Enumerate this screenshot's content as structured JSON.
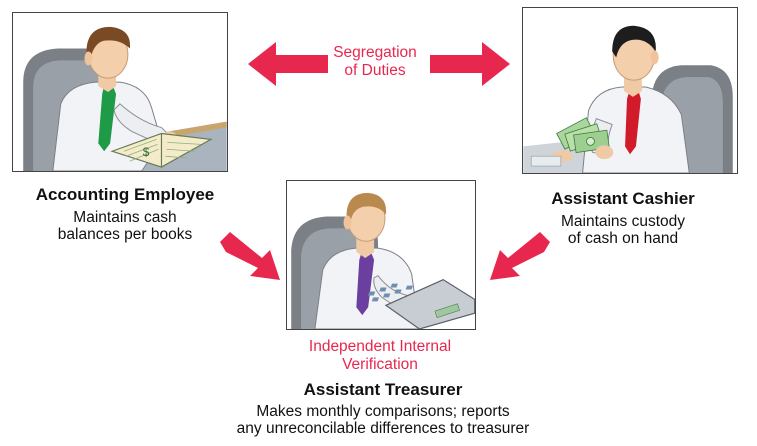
{
  "center_label": {
    "line1": "Segregation",
    "line2": "of Duties"
  },
  "accounting_employee": {
    "title": "Accounting Employee",
    "line1": "Maintains cash",
    "line2": "balances per books",
    "book_symbol": "$"
  },
  "assistant_cashier": {
    "title": "Assistant Cashier",
    "line1": "Maintains custody",
    "line2": "of cash on hand"
  },
  "verification_label": {
    "line1": "Independent Internal",
    "line2": "Verification"
  },
  "assistant_treasurer": {
    "title": "Assistant Treasurer",
    "line1": "Makes monthly comparisons; reports",
    "line2": "any unreconcilable differences to treasurer"
  },
  "colors": {
    "accent_red": "#e8274f",
    "tie_green": "#1f9a47",
    "tie_red": "#d11a2a",
    "tie_purple": "#6b3fa0"
  },
  "icons": [
    "accounting-employee-illustration",
    "assistant-cashier-illustration",
    "assistant-treasurer-illustration",
    "double-arrow-icon",
    "arrow-down-right-icon",
    "arrow-down-left-icon"
  ]
}
